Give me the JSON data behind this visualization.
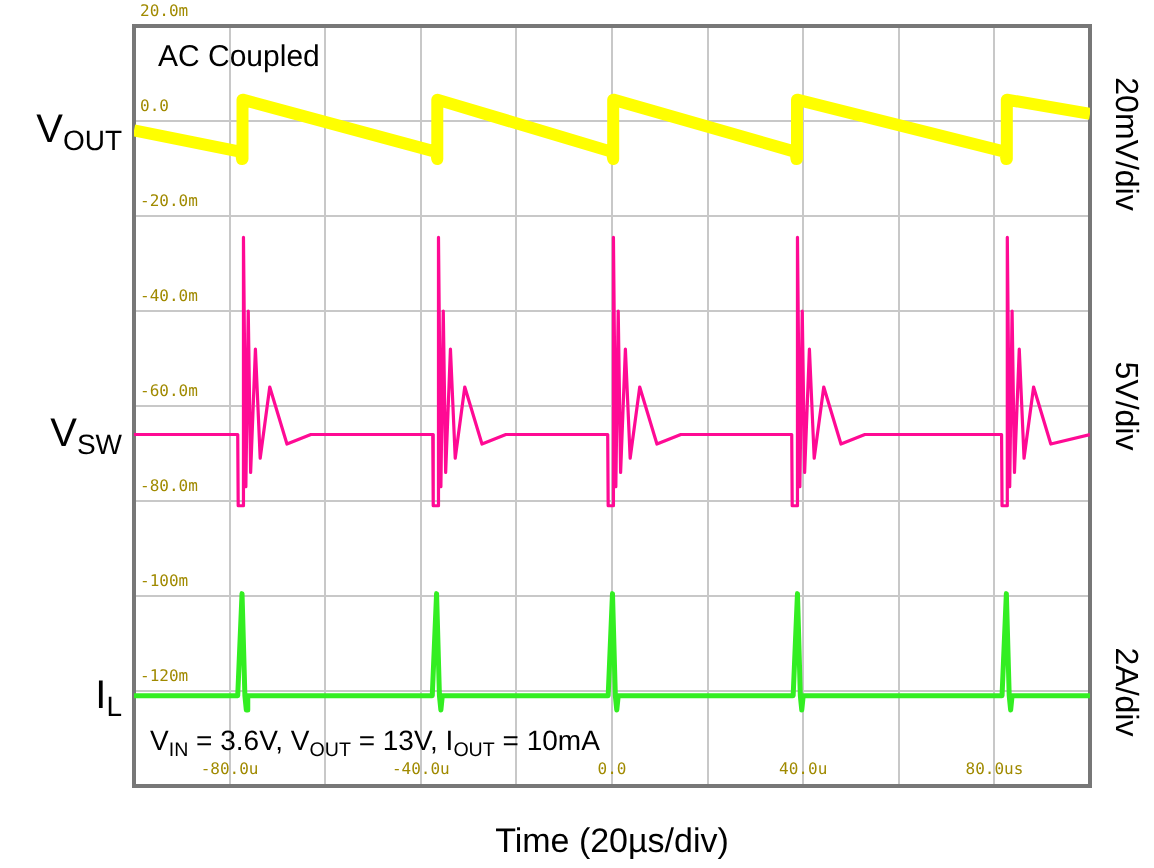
{
  "chart_data": {
    "type": "line",
    "xlabel": "Time (20µs/div)",
    "marker": "none",
    "line_style": "solid",
    "grid": true,
    "xlim": [
      -100,
      100
    ],
    "ylim": [
      -140,
      20
    ],
    "xticks": [
      {
        "value": -100,
        "label": null
      },
      {
        "value": -80,
        "label": "-80.0u"
      },
      {
        "value": -60,
        "label": null
      },
      {
        "value": -40,
        "label": "-40.0u"
      },
      {
        "value": -20,
        "label": null
      },
      {
        "value": 0,
        "label": "0.0"
      },
      {
        "value": 20,
        "label": null
      },
      {
        "value": 40,
        "label": "40.0u"
      },
      {
        "value": 60,
        "label": null
      },
      {
        "value": 80,
        "label": "80.0us"
      },
      {
        "value": 100,
        "label": null
      }
    ],
    "yticks": [
      {
        "value": 20,
        "label": "20.0m"
      },
      {
        "value": 0,
        "label": "0.0"
      },
      {
        "value": -20,
        "label": "-20.0m"
      },
      {
        "value": -40,
        "label": "-40.0m"
      },
      {
        "value": -60,
        "label": "-60.0m"
      },
      {
        "value": -80,
        "label": "-80.0m"
      },
      {
        "value": -100,
        "label": "-100m"
      },
      {
        "value": -120,
        "label": "-120m"
      },
      {
        "value": -140,
        "label": null
      }
    ],
    "annotations": [
      "AC Coupled",
      "V$_{IN}$ = 3.6V, V$_{OUT}$ = 13V, I$_{OUT}$ = 10mA",
      "20mV/div",
      "5V/div",
      "2A/div"
    ],
    "series": [
      {
        "name": "V$_{OUT}$",
        "color": "#ffff00",
        "x": [
          -100,
          -77.6,
          -77.4,
          -77.3,
          -36.8,
          -36.6,
          -36.5,
          0,
          0.2,
          0.3,
          38.4,
          38.6,
          38.7,
          82.3,
          82.5,
          82.6,
          100
        ],
        "values": [
          -2,
          -6.5,
          -8,
          4.5,
          -6.5,
          -8,
          4.5,
          -6.5,
          -8,
          4.5,
          -6.5,
          -8,
          4.5,
          -6.5,
          -8,
          4.5,
          1.5
        ]
      },
      {
        "name": "V$_{SW}$",
        "color": "#ff0a94",
        "x": [
          -100,
          -78.3,
          -78.2,
          -77.2,
          -77.1,
          -76.6,
          -76.1,
          -75.6,
          -74.6,
          -73.6,
          -71.6,
          -68,
          -63,
          -37.5,
          -37.4,
          -36.4,
          -36.3,
          -35.8,
          -35.3,
          -34.8,
          -33.8,
          -32.8,
          -30.8,
          -27.2,
          -22.2,
          -0.9,
          -0.8,
          0.2,
          0.3,
          0.8,
          1.3,
          1.8,
          2.8,
          3.8,
          5.8,
          9.4,
          14.4,
          37.6,
          37.7,
          38.7,
          38.8,
          39.3,
          39.8,
          40.3,
          41.3,
          42.3,
          44.3,
          47.9,
          52.9,
          81.5,
          81.6,
          82.6,
          82.7,
          83.2,
          83.7,
          84.2,
          85.2,
          86.2,
          88.2,
          91.8,
          100
        ],
        "values": [
          -66,
          -66,
          -81,
          -81,
          -24.5,
          -77,
          -40,
          -74,
          -48,
          -71,
          -56,
          -68,
          -66,
          -66,
          -81,
          -81,
          -24.5,
          -77,
          -40,
          -74,
          -48,
          -71,
          -56,
          -68,
          -66,
          -66,
          -81,
          -81,
          -24.5,
          -77,
          -40,
          -74,
          -48,
          -71,
          -56,
          -68,
          -66,
          -66,
          -81,
          -81,
          -24.5,
          -77,
          -40,
          -74,
          -48,
          -71,
          -56,
          -68,
          -66,
          -66,
          -81,
          -81,
          -24.5,
          -77,
          -40,
          -74,
          -48,
          -71,
          -56,
          -68,
          -66
        ]
      },
      {
        "name": "I$_{L}$",
        "color": "#33ee22",
        "x": [
          -100,
          -78.3,
          -77.4,
          -76.8,
          -76.5,
          -76.2,
          -37.6,
          -36.7,
          -36.1,
          -35.8,
          -35.5,
          -0.8,
          0.1,
          0.7,
          1,
          1.3,
          37.9,
          38.8,
          39.4,
          39.7,
          40,
          81.6,
          82.5,
          83.1,
          83.4,
          83.7,
          100
        ],
        "values": [
          -121,
          -121,
          -99.5,
          -121,
          -124,
          -121,
          -121,
          -99.5,
          -121,
          -124,
          -121,
          -121,
          -99.5,
          -121,
          -124,
          -121,
          -121,
          -99.5,
          -121,
          -124,
          -121,
          -121,
          -99.5,
          -121,
          -124,
          -121,
          -121
        ]
      }
    ]
  }
}
